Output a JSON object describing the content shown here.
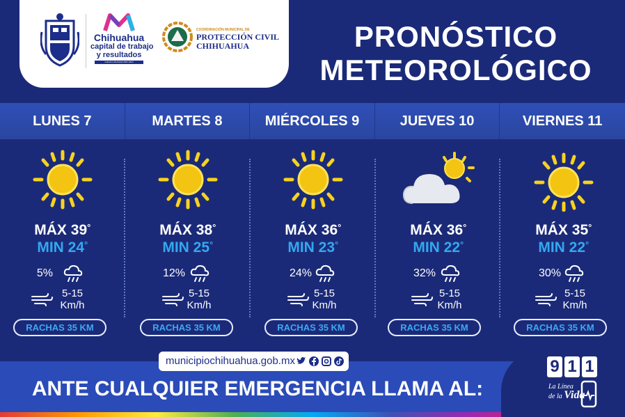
{
  "header": {
    "municipality": {
      "name": "Chihuahua",
      "tagline_1": "capital de trabajo",
      "tagline_2": "y resultados",
      "term": "Gobierno Municipal 2021-2024"
    },
    "civil_protection": {
      "small": "COORDINACIÓN MUNICIPAL DE",
      "line_1": "PROTECCIÓN CIVIL",
      "line_2": "CHIHUAHUA"
    },
    "title_line_1": "PRONÓSTICO",
    "title_line_2": "METEOROLÓGICO"
  },
  "colors": {
    "background": "#1b2a78",
    "day_header": "#2f4fb8",
    "min_temp": "#34a8f0",
    "gust_text": "#3ea8f3",
    "sun": "#f7d21f"
  },
  "days": [
    {
      "day": "LUNES 7",
      "icon": "sun-icon",
      "max": "MÁX 39",
      "min": "MIN 24",
      "deg": "°",
      "rain": "5%",
      "wind_1": "5-15",
      "wind_2": "Km/h",
      "gusts": "RACHAS 35 KM"
    },
    {
      "day": "MARTES 8",
      "icon": "sun-icon",
      "max": "MÁX 38",
      "min": "MIN 25",
      "deg": "°",
      "rain": "12%",
      "wind_1": "5-15",
      "wind_2": "Km/h",
      "gusts": "RACHAS 35 KM"
    },
    {
      "day": "MIÉRCOLES 9",
      "icon": "sun-icon",
      "max": "MÁX 36",
      "min": "MIN 23",
      "deg": "°",
      "rain": "24%",
      "wind_1": "5-15",
      "wind_2": "Km/h",
      "gusts": "RACHAS 35 KM"
    },
    {
      "day": "JUEVES 10",
      "icon": "partly-cloudy-icon",
      "max": "MÁX 36",
      "min": "MIN 22",
      "deg": "°",
      "rain": "32%",
      "wind_1": "5-15",
      "wind_2": "Km/h",
      "gusts": "RACHAS 35 KM"
    },
    {
      "day": "VIERNES 11",
      "icon": "sun-icon",
      "max": "MÁX 35",
      "min": "MIN 22",
      "deg": "°",
      "rain": "30%",
      "wind_1": "5-15",
      "wind_2": "Km/h",
      "gusts": "RACHAS 35 KM"
    }
  ],
  "footer": {
    "website": "municipiochihuahua.gob.mx",
    "social_icons": [
      "twitter-icon",
      "facebook-icon",
      "instagram-icon",
      "tiktok-icon"
    ],
    "emergency_text": "ANTE CUALQUIER EMERGENCIA LLAMA AL:",
    "number_digits": [
      "9",
      "1",
      "1"
    ],
    "hotline_1": "La Línea",
    "hotline_2": "de la",
    "hotline_3": "Vida"
  }
}
